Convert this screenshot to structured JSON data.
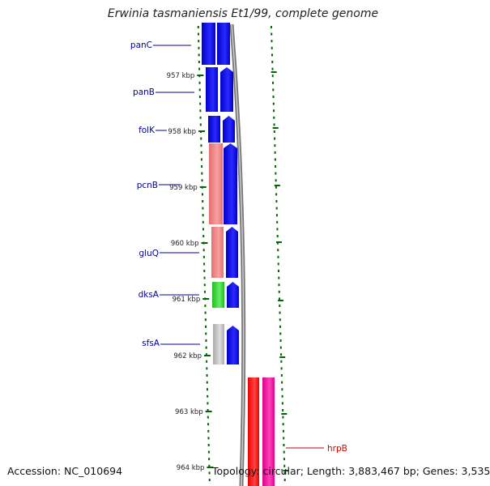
{
  "title": "Erwinia tasmaniensis Et1/99, complete genome",
  "accession": "Accession: NC_010694",
  "topology": "Topology: circular; Length: 3,883,467 bp; Genes: 3,535",
  "colors": {
    "cds": "#0000ee",
    "rna": "#f08080",
    "trna": "#33cc33",
    "pseudo": "#bbbbbb",
    "backbone": "#888888",
    "tick": "#006600",
    "label_forward": "#000099",
    "label_other": "#cc0000",
    "red_feature": "#ff0000",
    "pink_feature": "#ee1199"
  },
  "ticks": [
    "957 kbp",
    "958 kbp",
    "959 kbp",
    "960 kbp",
    "961 kbp",
    "962 kbp",
    "963 kbp",
    "964 kbp"
  ],
  "genes": [
    {
      "name": "panC"
    },
    {
      "name": "panB"
    },
    {
      "name": "folK"
    },
    {
      "name": "pcnB"
    },
    {
      "name": "gluQ"
    },
    {
      "name": "dksA"
    },
    {
      "name": "sfsA"
    },
    {
      "name": "hrpB"
    }
  ]
}
